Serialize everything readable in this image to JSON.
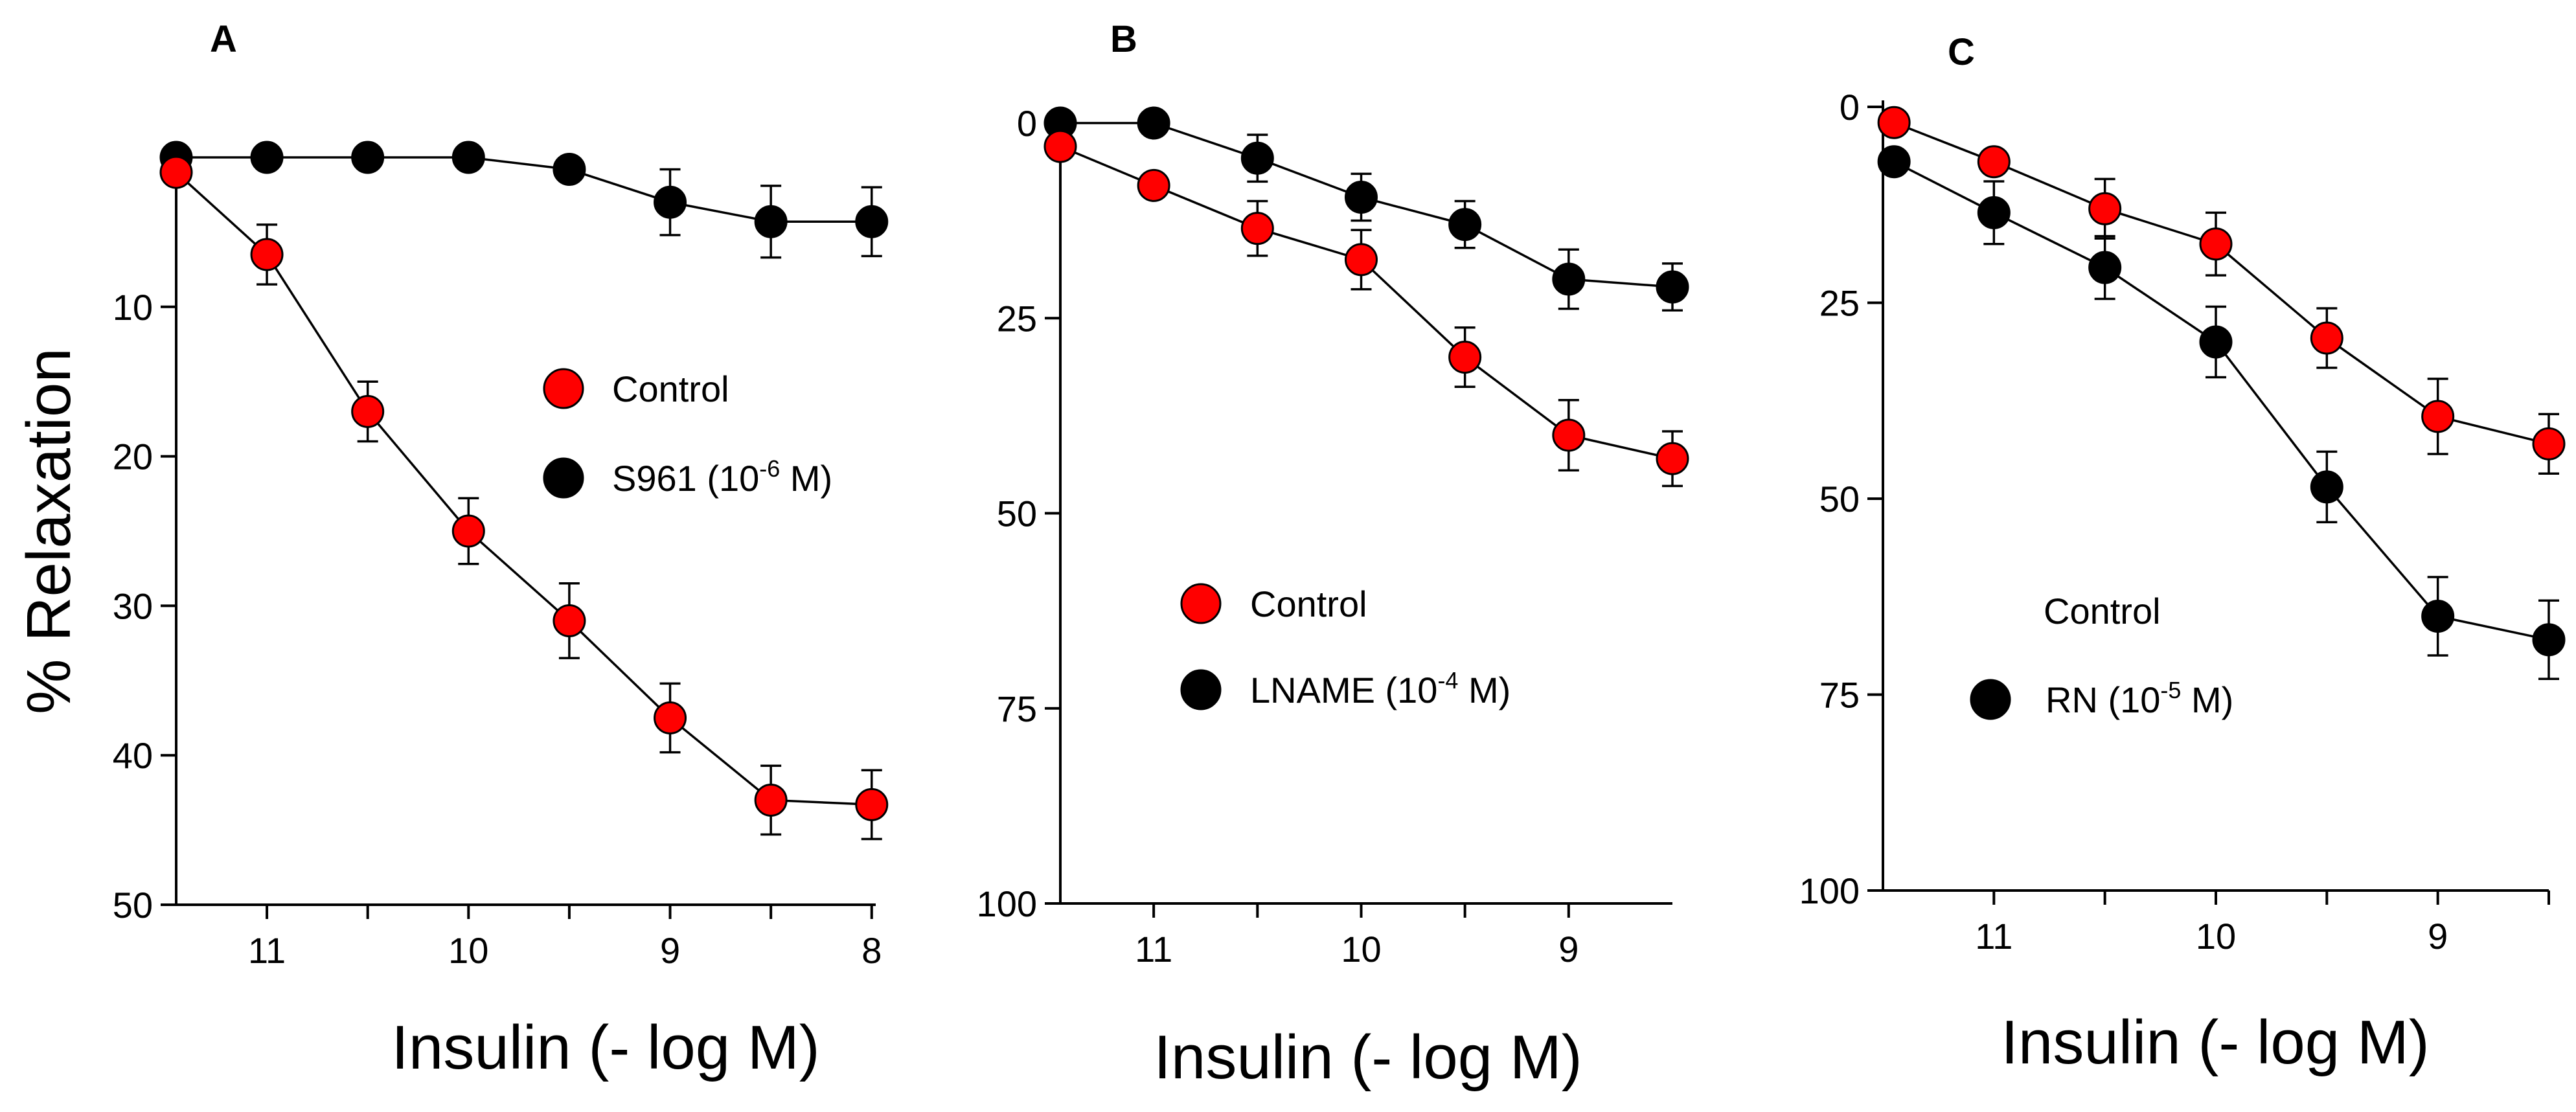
{
  "colors": {
    "control": "#ff0000",
    "treatment": "#000000"
  },
  "chart_data": [
    {
      "type": "line",
      "panel": "A",
      "ylabel": "% Relaxation",
      "xlabel": "Insulin (- log M)",
      "xlim": [
        11.45,
        7.98
      ],
      "ylim": [
        0,
        50
      ],
      "y_inverted": true,
      "yticks": [
        10,
        20,
        30,
        40,
        50
      ],
      "xticks": [
        11,
        10.5,
        10,
        9.5,
        9,
        8.5,
        8
      ],
      "xtick_labels": [
        {
          "value": 11,
          "label": "11"
        },
        {
          "value": 10,
          "label": "10"
        },
        {
          "value": 9,
          "label": "9"
        },
        {
          "value": 8,
          "label": "8"
        }
      ],
      "legend_position": "center-right",
      "series": [
        {
          "name": "Control",
          "color": "red",
          "x": [
            11.45,
            11,
            10.5,
            10,
            9.5,
            9,
            8.5,
            8
          ],
          "y": [
            1.0,
            6.5,
            17,
            25,
            31,
            37.5,
            43,
            43.3
          ],
          "err": [
            0,
            2,
            2,
            2.2,
            2.5,
            2.3,
            2.3,
            2.3
          ]
        },
        {
          "name": "S961",
          "conc": "(10",
          "exp": "-6",
          "conc_end": " M)",
          "color": "black",
          "x": [
            11.45,
            11,
            10.5,
            10,
            9.5,
            9,
            8.5,
            8
          ],
          "y": [
            0,
            0,
            0,
            0,
            0.8,
            3,
            4.3,
            4.3
          ],
          "err": [
            0,
            0,
            0,
            0,
            0,
            2.2,
            2.4,
            2.3
          ]
        }
      ]
    },
    {
      "type": "line",
      "panel": "B",
      "ylabel": "",
      "xlabel": "Insulin (- log M)",
      "xlim": [
        11.45,
        8.5
      ],
      "ylim": [
        0,
        100
      ],
      "y_inverted": true,
      "yticks": [
        0,
        25,
        50,
        75,
        100
      ],
      "xticks": [
        11,
        10.5,
        10,
        9.5,
        9
      ],
      "xtick_labels": [
        {
          "value": 11,
          "label": "11"
        },
        {
          "value": 10,
          "label": "10"
        },
        {
          "value": 9,
          "label": "9"
        }
      ],
      "legend_position": "center",
      "series": [
        {
          "name": "Control",
          "color": "red",
          "x": [
            11.45,
            11,
            10.5,
            10,
            9.5,
            9,
            8.5
          ],
          "y": [
            3,
            8,
            13.5,
            17.5,
            30,
            40,
            43
          ],
          "err": [
            0,
            0,
            3.5,
            3.8,
            3.8,
            4.5,
            3.5
          ]
        },
        {
          "name": "LNAME",
          "conc": "(10",
          "exp": "-4",
          "conc_end": " M)",
          "color": "black",
          "x": [
            11.45,
            11,
            10.5,
            10,
            9.5,
            9,
            8.5
          ],
          "y": [
            0,
            0,
            4.5,
            9.5,
            13,
            20,
            21
          ],
          "err": [
            0,
            0,
            3,
            3,
            3,
            3.8,
            3
          ]
        }
      ]
    },
    {
      "type": "line",
      "panel": "C",
      "ylabel": "",
      "xlabel": "Insulin (- log M)",
      "xlim": [
        11.5,
        8.5
      ],
      "ylim": [
        0,
        100
      ],
      "y_inverted": true,
      "yticks": [
        0,
        25,
        50,
        75,
        100
      ],
      "xticks": [
        11,
        10.5,
        10,
        9.5,
        9,
        8.5
      ],
      "xtick_labels": [
        {
          "value": 11,
          "label": "11"
        },
        {
          "value": 10,
          "label": "10"
        },
        {
          "value": 9,
          "label": "9"
        }
      ],
      "legend_position": "bottom-center",
      "series": [
        {
          "name": "Control",
          "color": "red",
          "x": [
            11.45,
            11,
            10.5,
            10,
            9.5,
            9,
            8.5
          ],
          "y": [
            2,
            7,
            13,
            17.5,
            29.5,
            39.5,
            43
          ],
          "err": [
            0,
            0,
            3.8,
            4,
            3.8,
            4.8,
            3.8
          ],
          "legend_marker": false
        },
        {
          "name": "RN",
          "conc": "(10",
          "exp": "-5",
          "conc_end": " M)",
          "color": "black",
          "x": [
            11.45,
            11,
            10.5,
            10,
            9.5,
            9,
            8.5
          ],
          "y": [
            7,
            13.5,
            20.5,
            30,
            48.5,
            65,
            68
          ],
          "err": [
            0,
            4,
            4,
            4.5,
            4.5,
            5,
            5
          ]
        }
      ]
    }
  ]
}
